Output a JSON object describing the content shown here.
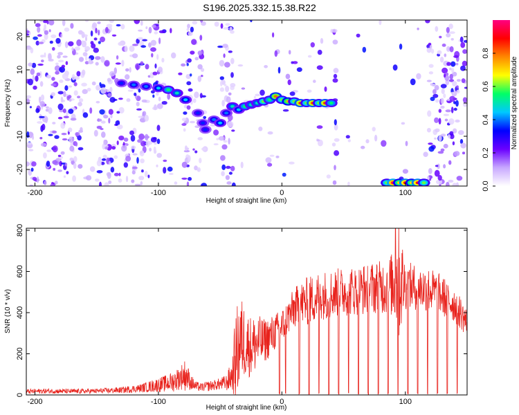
{
  "figure_title": "S196.2025.332.15.38.R22",
  "chart_data": [
    {
      "type": "heatmap",
      "title": "S196.2025.332.15.38.R22",
      "xlabel": "Height of straight line (km)",
      "ylabel": "Frequency (Hz)",
      "xlim": [
        -207,
        150
      ],
      "ylim": [
        -25,
        25
      ],
      "xticks": [
        -200,
        -100,
        0,
        100
      ],
      "xtick_labels": [
        "-200",
        "-100",
        "0",
        "100"
      ],
      "yticks": [
        -20,
        -10,
        0,
        10,
        20
      ],
      "ytick_labels": [
        "-20",
        "-10",
        "0",
        "10",
        "20"
      ],
      "colorbar": {
        "label": "Normalized spectral amplitude",
        "range": [
          0,
          1
        ],
        "ticks": [
          0.0,
          0.2,
          0.4,
          0.6,
          0.8
        ],
        "tick_labels": [
          "0.0",
          "0.2",
          "0.4",
          "0.6",
          "0.8"
        ],
        "colors": [
          "#ffffff",
          "#c8a8ff",
          "#6a00ff",
          "#0000ff",
          "#00c8ff",
          "#00ff66",
          "#ffff00",
          "#ff8800",
          "#ff0000",
          "#ff0080"
        ]
      },
      "blank_regions_km": [
        [
          -95,
          -80
        ],
        [
          -62,
          -50
        ],
        [
          45,
          80
        ],
        [
          80,
          118
        ]
      ],
      "signal_track": [
        {
          "x": -130,
          "f": 6,
          "a": 0.35
        },
        {
          "x": -120,
          "f": 5.5,
          "a": 0.4
        },
        {
          "x": -110,
          "f": 5,
          "a": 0.4
        },
        {
          "x": -100,
          "f": 4.5,
          "a": 0.45
        },
        {
          "x": -92,
          "f": 4,
          "a": 0.55
        },
        {
          "x": -85,
          "f": 3,
          "a": 0.5
        },
        {
          "x": -78,
          "f": 1,
          "a": 0.45
        },
        {
          "x": -68,
          "f": -3,
          "a": 0.35
        },
        {
          "x": -64,
          "f": -6,
          "a": 0.35
        },
        {
          "x": -62,
          "f": -8,
          "a": 0.35
        },
        {
          "x": -55,
          "f": -5,
          "a": 0.4
        },
        {
          "x": -50,
          "f": -6,
          "a": 0.45
        },
        {
          "x": -45,
          "f": -3,
          "a": 0.4
        },
        {
          "x": -40,
          "f": -1,
          "a": 0.5
        },
        {
          "x": -35,
          "f": -2,
          "a": 0.45
        },
        {
          "x": -30,
          "f": -1,
          "a": 0.55
        },
        {
          "x": -25,
          "f": -0.5,
          "a": 0.5
        },
        {
          "x": -20,
          "f": 0,
          "a": 0.5
        },
        {
          "x": -15,
          "f": 0.5,
          "a": 0.6
        },
        {
          "x": -10,
          "f": 1,
          "a": 0.55
        },
        {
          "x": -5,
          "f": 2,
          "a": 0.8
        },
        {
          "x": 0,
          "f": 1,
          "a": 0.6
        },
        {
          "x": 5,
          "f": 0.5,
          "a": 0.75
        },
        {
          "x": 10,
          "f": 0.5,
          "a": 0.6
        },
        {
          "x": 15,
          "f": 0,
          "a": 0.85
        },
        {
          "x": 20,
          "f": 0,
          "a": 0.6
        },
        {
          "x": 25,
          "f": 0,
          "a": 0.85
        },
        {
          "x": 30,
          "f": 0,
          "a": 0.6
        },
        {
          "x": 35,
          "f": 0,
          "a": 0.85
        },
        {
          "x": 40,
          "f": 0,
          "a": 0.55
        },
        {
          "x": 85,
          "f": -24,
          "a": 0.6
        },
        {
          "x": 90,
          "f": -24,
          "a": 0.95
        },
        {
          "x": 95,
          "f": -24,
          "a": 0.7
        },
        {
          "x": 100,
          "f": -24,
          "a": 0.9
        },
        {
          "x": 105,
          "f": -24,
          "a": 0.7
        },
        {
          "x": 110,
          "f": -24,
          "a": 0.9
        },
        {
          "x": 115,
          "f": -24,
          "a": 0.6
        }
      ]
    },
    {
      "type": "line",
      "title": "",
      "xlabel": "Height of straight line (km)",
      "ylabel": "SNR (10 * v/v)",
      "xlim": [
        -207,
        150
      ],
      "ylim": [
        0,
        810
      ],
      "xticks": [
        -200,
        -100,
        0,
        100
      ],
      "xtick_labels": [
        "-200",
        "-100",
        "0",
        "100"
      ],
      "yticks": [
        0,
        200,
        400,
        600,
        800
      ],
      "ytick_labels": [
        "0",
        "200",
        "400",
        "600",
        "800"
      ],
      "series": [
        {
          "name": "SNR",
          "color": "#e8221c",
          "x": [
            -207,
            -190,
            -170,
            -150,
            -130,
            -115,
            -105,
            -95,
            -88,
            -82,
            -78,
            -74,
            -70,
            -65,
            -60,
            -55,
            -50,
            -45,
            -40,
            -38,
            -35,
            -32,
            -28,
            -25,
            -20,
            -15,
            -10,
            -5,
            0,
            5,
            10,
            15,
            20,
            25,
            30,
            40,
            50,
            60,
            70,
            80,
            90,
            95,
            100,
            110,
            120,
            130,
            140,
            145,
            150
          ],
          "base": [
            15,
            18,
            16,
            18,
            22,
            30,
            40,
            50,
            60,
            80,
            90,
            60,
            40,
            35,
            40,
            45,
            50,
            55,
            90,
            150,
            220,
            250,
            230,
            220,
            240,
            250,
            270,
            300,
            320,
            370,
            410,
            430,
            440,
            455,
            470,
            480,
            490,
            495,
            505,
            510,
            520,
            530,
            520,
            510,
            500,
            470,
            430,
            390,
            340
          ],
          "amp": [
            12,
            12,
            12,
            12,
            15,
            20,
            30,
            40,
            50,
            60,
            80,
            40,
            25,
            20,
            25,
            25,
            30,
            40,
            80,
            200,
            240,
            200,
            160,
            150,
            140,
            110,
            100,
            90,
            90,
            90,
            100,
            110,
            120,
            120,
            120,
            120,
            120,
            120,
            130,
            130,
            160,
            300,
            120,
            110,
            110,
            100,
            90,
            80,
            70
          ],
          "dropouts_km": [
            -2,
            3,
            14,
            22,
            30,
            38,
            46,
            54,
            62,
            70,
            78,
            86,
            94,
            102,
            110,
            118,
            126,
            134,
            142
          ],
          "peak": {
            "x": 92,
            "y": 810
          }
        }
      ]
    }
  ]
}
